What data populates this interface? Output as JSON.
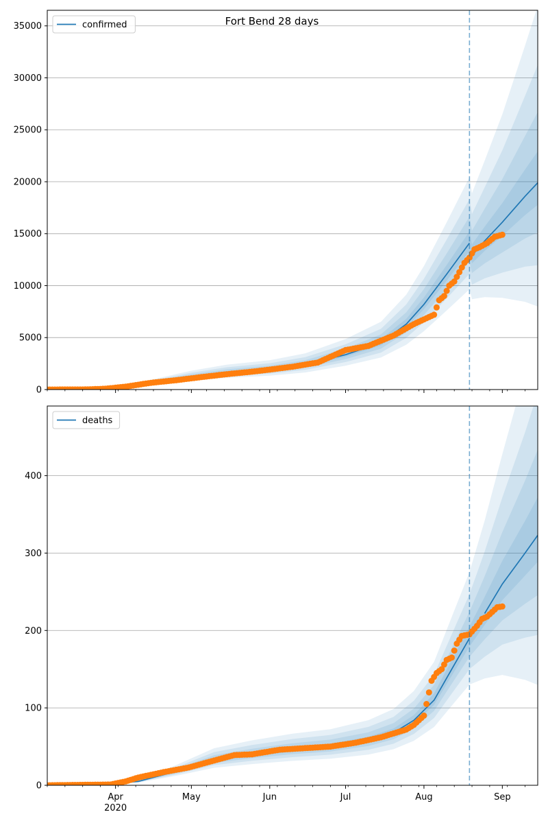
{
  "chart_data": {
    "title": "Fort Bend 28 days",
    "type": "line",
    "x_range": [
      "2020-03-05",
      "2020-09-15"
    ],
    "x_month_labels": [
      "Apr",
      "May",
      "Jun",
      "Jul",
      "Aug",
      "Sep"
    ],
    "x_year_label": "2020",
    "vline_date": "2020-08-19",
    "colors": {
      "model": "#1f77b4",
      "observed": "#ff7f0e",
      "grid": "#b0b0b0"
    },
    "panels": [
      {
        "legend": "confirmed",
        "legend_position": "upper-left",
        "ylim": [
          0,
          36500
        ],
        "yticks": [
          "0",
          "5000",
          "10000",
          "15000",
          "20000",
          "25000",
          "30000",
          "35000"
        ],
        "model": {
          "x": [
            "2020-03-05",
            "2020-03-20",
            "2020-04-01",
            "2020-04-15",
            "2020-05-01",
            "2020-05-15",
            "2020-06-01",
            "2020-06-15",
            "2020-07-01",
            "2020-07-15",
            "2020-07-25",
            "2020-08-01",
            "2020-08-10",
            "2020-08-19",
            "2020-08-20",
            "2020-08-25",
            "2020-09-01",
            "2020-09-10",
            "2020-09-15"
          ],
          "y": [
            0,
            30,
            200,
            650,
            1250,
            1650,
            1950,
            2400,
            3350,
            4500,
            6300,
            8200,
            11100,
            14100,
            12900,
            14300,
            16100,
            18600,
            19900
          ],
          "band_widths": [
            0.45,
            0.3,
            0.18,
            0.08
          ]
        },
        "observed": {
          "x": [
            "2020-03-05",
            "2020-03-20",
            "2020-03-28",
            "2020-04-05",
            "2020-04-15",
            "2020-04-25",
            "2020-05-05",
            "2020-05-15",
            "2020-05-25",
            "2020-06-01",
            "2020-06-10",
            "2020-06-20",
            "2020-07-01",
            "2020-07-10",
            "2020-07-20",
            "2020-07-28",
            "2020-08-05",
            "2020-08-07",
            "2020-08-09",
            "2020-08-10",
            "2020-08-11",
            "2020-08-13",
            "2020-08-15",
            "2020-08-17",
            "2020-08-19",
            "2020-08-21",
            "2020-08-23",
            "2020-08-26",
            "2020-08-29",
            "2020-09-01"
          ],
          "y": [
            0,
            10,
            80,
            280,
            650,
            900,
            1200,
            1480,
            1720,
            1920,
            2200,
            2600,
            3800,
            4200,
            5200,
            6300,
            7200,
            8600,
            9000,
            9500,
            10000,
            10400,
            11300,
            12200,
            12700,
            13500,
            13700,
            14100,
            14700,
            14900
          ]
        }
      },
      {
        "legend": "deaths",
        "legend_position": "upper-left",
        "ylim": [
          0,
          490
        ],
        "yticks": [
          "0",
          "100",
          "200",
          "300",
          "400"
        ],
        "model": {
          "x": [
            "2020-03-05",
            "2020-03-25",
            "2020-04-10",
            "2020-04-25",
            "2020-05-10",
            "2020-05-25",
            "2020-06-10",
            "2020-06-25",
            "2020-07-10",
            "2020-07-20",
            "2020-07-28",
            "2020-08-05",
            "2020-08-12",
            "2020-08-19",
            "2020-08-25",
            "2020-09-01",
            "2020-09-10",
            "2020-09-15"
          ],
          "y": [
            0,
            1,
            5,
            18,
            33,
            40,
            46,
            50,
            58,
            68,
            84,
            110,
            150,
            190,
            222,
            260,
            300,
            323
          ],
          "band_widths": [
            0.45,
            0.3,
            0.18,
            0.08
          ]
        },
        "observed": {
          "x": [
            "2020-03-05",
            "2020-03-30",
            "2020-04-05",
            "2020-04-10",
            "2020-04-20",
            "2020-04-30",
            "2020-05-10",
            "2020-05-18",
            "2020-05-25",
            "2020-06-05",
            "2020-06-15",
            "2020-06-25",
            "2020-07-05",
            "2020-07-15",
            "2020-07-25",
            "2020-07-28",
            "2020-08-01",
            "2020-08-04",
            "2020-08-06",
            "2020-08-08",
            "2020-08-10",
            "2020-08-12",
            "2020-08-14",
            "2020-08-16",
            "2020-08-19",
            "2020-08-22",
            "2020-08-24",
            "2020-08-26",
            "2020-08-28",
            "2020-08-30",
            "2020-09-01"
          ],
          "y": [
            0,
            1,
            5,
            10,
            17,
            23,
            32,
            39,
            40,
            46,
            48,
            50,
            55,
            62,
            72,
            78,
            90,
            135,
            145,
            150,
            162,
            165,
            183,
            193,
            195,
            206,
            215,
            218,
            224,
            230,
            231
          ]
        }
      }
    ]
  }
}
